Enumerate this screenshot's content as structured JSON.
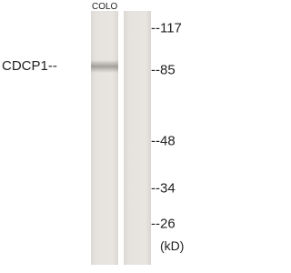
{
  "lanes": [
    "COLO"
  ],
  "protein_label": "CDCP1--",
  "markers": [
    "--117",
    "--85",
    "--48",
    "--34",
    "--26"
  ],
  "unit": "(kD)"
}
